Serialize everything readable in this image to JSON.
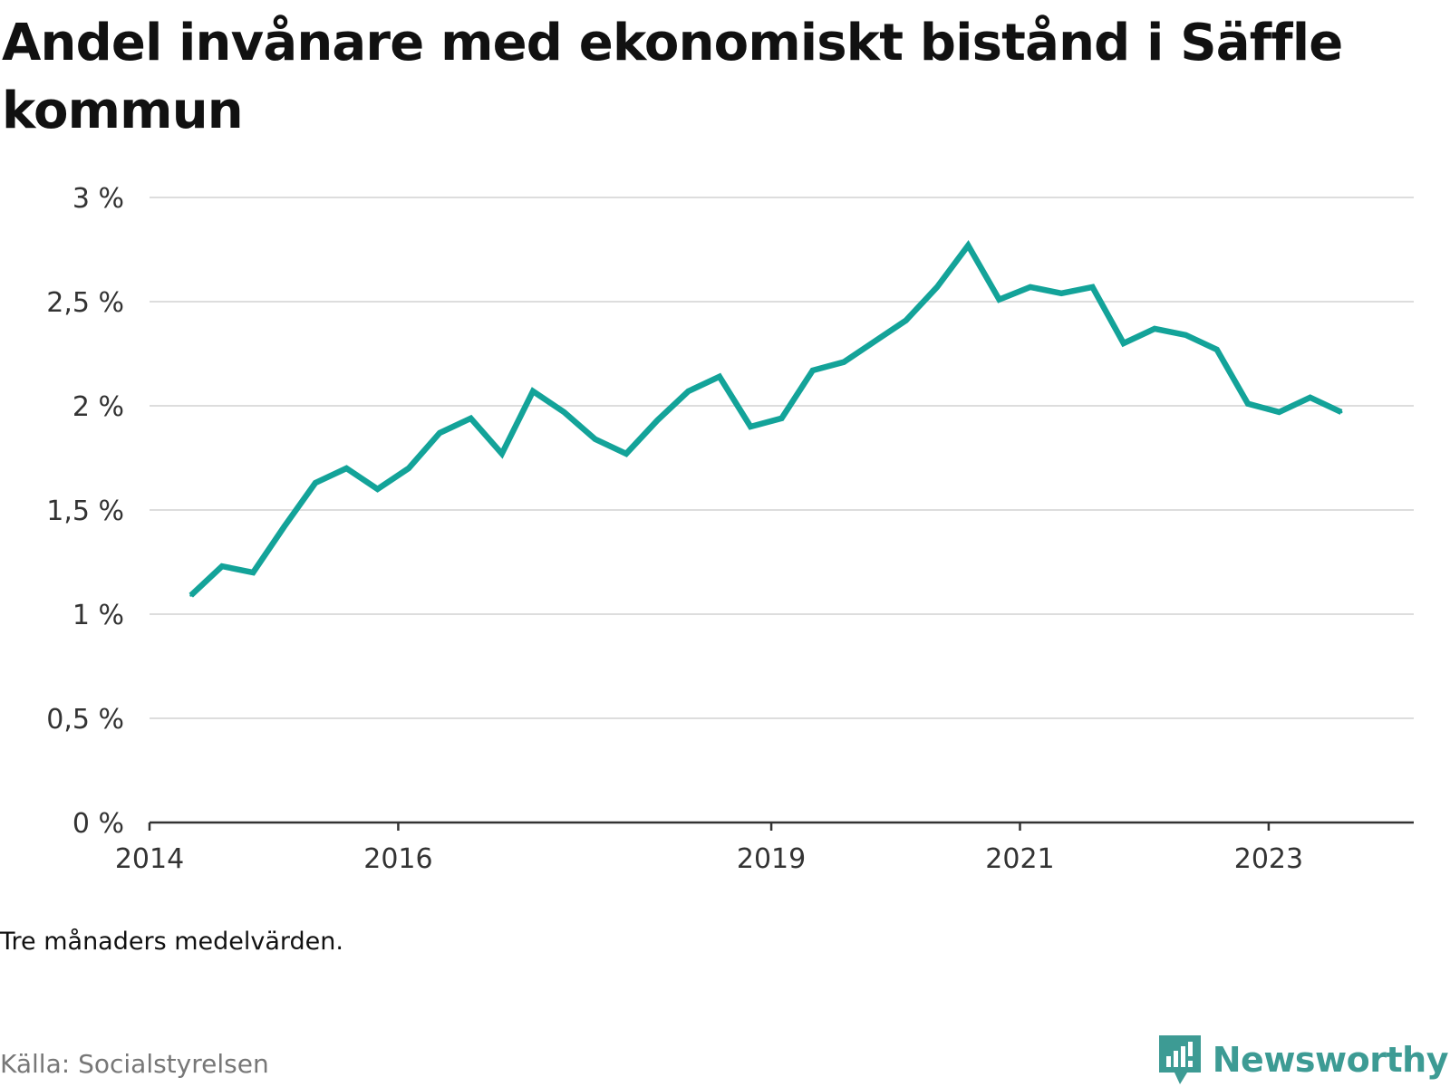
{
  "title": "Andel invånare med ekonomiskt bistånd i Säffle kommun",
  "note": "Tre månaders medelvärden.",
  "source": "Källa: Socialstyrelsen",
  "brand": {
    "name": "Newsworthy",
    "color": "#3d9b94",
    "icon": "newsworthy-logo-icon"
  },
  "colors": {
    "line": "#13a399",
    "grid": "#dddddd",
    "axis": "#333333"
  },
  "chart_data": {
    "type": "line",
    "title": "Andel invånare med ekonomiskt bistånd i Säffle kommun",
    "xlabel": "",
    "ylabel": "",
    "x_ticks": [
      "2014",
      "2016",
      "2019",
      "2021",
      "2023"
    ],
    "y_ticks": [
      "0 %",
      "0,5 %",
      "1 %",
      "1,5 %",
      "2 %",
      "2,5 %",
      "3 %"
    ],
    "ylim": [
      0,
      3
    ],
    "xlim": [
      "2014-01",
      "2024-03"
    ],
    "grid": true,
    "unit": "%",
    "series": [
      {
        "x": [
          "2014-05",
          "2014-08",
          "2014-11",
          "2015-02",
          "2015-05",
          "2015-08",
          "2015-11",
          "2016-02",
          "2016-05",
          "2016-08",
          "2016-11",
          "2017-02",
          "2017-05",
          "2017-08",
          "2017-11",
          "2018-02",
          "2018-05",
          "2018-08",
          "2018-11",
          "2019-02",
          "2019-05",
          "2019-08",
          "2019-11",
          "2020-02",
          "2020-05",
          "2020-08",
          "2020-11",
          "2021-02",
          "2021-05",
          "2021-08",
          "2021-11",
          "2022-02",
          "2022-05",
          "2022-08",
          "2022-11",
          "2023-02",
          "2023-05",
          "2023-08"
        ],
        "values": [
          1.09,
          1.23,
          1.2,
          1.42,
          1.63,
          1.7,
          1.6,
          1.7,
          1.87,
          1.94,
          1.77,
          2.07,
          1.97,
          1.84,
          1.77,
          1.93,
          2.07,
          2.14,
          1.9,
          1.94,
          2.17,
          2.21,
          2.31,
          2.41,
          2.57,
          2.77,
          2.51,
          2.57,
          2.54,
          2.57,
          2.3,
          2.37,
          2.34,
          2.27,
          2.01,
          1.97,
          2.04,
          1.97
        ]
      }
    ]
  }
}
